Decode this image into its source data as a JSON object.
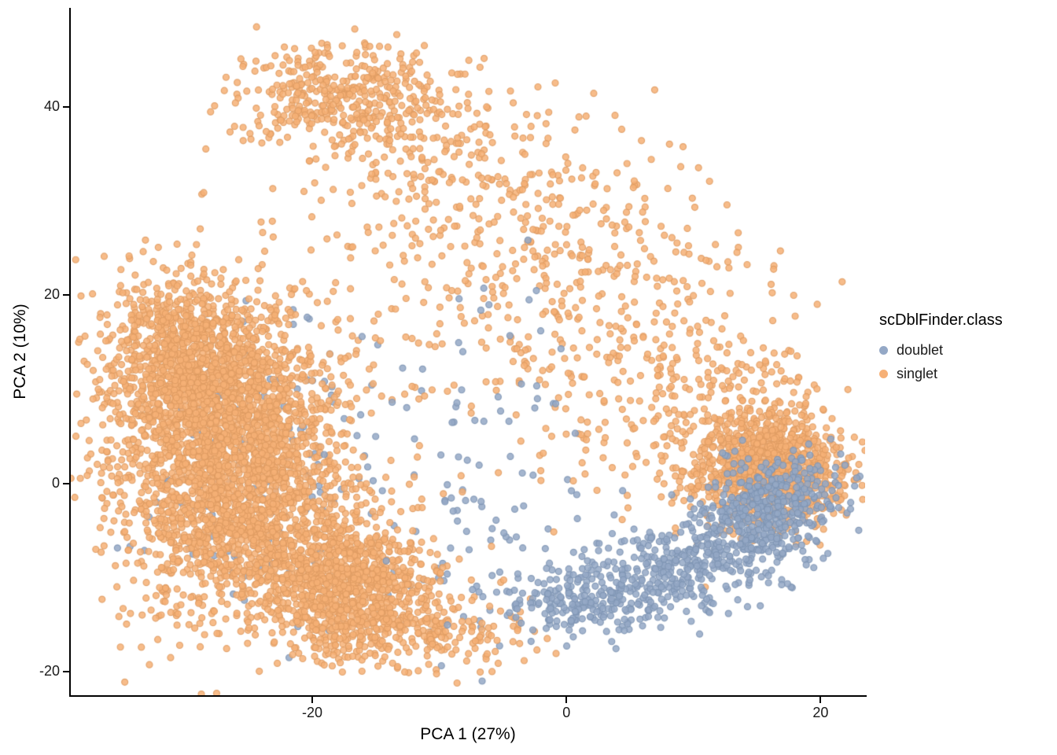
{
  "chart_data": {
    "type": "scatter",
    "title": "",
    "xlabel": "PCA 1 (27%)",
    "ylabel": "PCA 2 (10%)",
    "xlim": [
      -39,
      23.5
    ],
    "ylim": [
      -22.5,
      50.5
    ],
    "grid": false,
    "x_ticks": [
      {
        "value": -20,
        "label": "-20"
      },
      {
        "value": 0,
        "label": "0"
      },
      {
        "value": 20,
        "label": "20"
      }
    ],
    "y_ticks": [
      {
        "value": -20,
        "label": "-20"
      },
      {
        "value": 0,
        "label": "0"
      },
      {
        "value": 20,
        "label": "20"
      },
      {
        "value": 40,
        "label": "40"
      }
    ],
    "legend": {
      "title": "scDblFinder.class",
      "position": "right",
      "entries": [
        {
          "label": "doublet",
          "color": "#94A8C6"
        },
        {
          "label": "singlet",
          "color": "#F6B076"
        }
      ]
    },
    "point_style": {
      "radius": 4,
      "stroke_width": 1.2,
      "alpha": 0.85,
      "colors": {
        "doublet": {
          "fill": "#94A8C6",
          "stroke": "#7E94B3"
        },
        "singlet": {
          "fill": "#F6B076",
          "stroke": "#DE9B62"
        }
      }
    },
    "seed": 42,
    "series": [
      {
        "name": "doublet",
        "n_points": 1255
      },
      {
        "name": "singlet",
        "n_points": 7020
      }
    ],
    "clusters": [
      {
        "cls": "doublet",
        "cx": -24,
        "cy": 2,
        "sx": 5,
        "sy": 8,
        "n": 150
      },
      {
        "cls": "doublet",
        "cx": -6,
        "cy": -4,
        "sx": 3.5,
        "sy": 7,
        "n": 70
      },
      {
        "cls": "singlet",
        "cx": -27,
        "cy": 8,
        "sx": 4.5,
        "sy": 6,
        "n": 1500
      },
      {
        "cls": "singlet",
        "cx": -25,
        "cy": -4,
        "sx": 4.5,
        "sy": 5,
        "n": 1200
      },
      {
        "cls": "singlet",
        "cx": -17,
        "cy": -11,
        "sx": 3.5,
        "sy": 3.5,
        "n": 900
      },
      {
        "cls": "singlet",
        "cx": -30,
        "cy": 14,
        "sx": 3,
        "sy": 4,
        "n": 500
      },
      {
        "cls": "singlet",
        "cx": -31,
        "cy": 3,
        "sx": 4,
        "sy": 10,
        "n": 300
      },
      {
        "cls": "singlet",
        "cx": -14,
        "cy": -16,
        "sx": 4,
        "sy": 2.2,
        "n": 140
      },
      {
        "cls": "singlet",
        "cx": -8,
        "cy": -16,
        "sx": 3,
        "sy": 2,
        "n": 70
      },
      {
        "cls": "singlet",
        "cx": -17,
        "cy": 41,
        "sx": 4.5,
        "sy": 3,
        "n": 430
      },
      {
        "cls": "singlet",
        "cx": -8,
        "cy": 32,
        "sx": 7,
        "sy": 5,
        "n": 260
      },
      {
        "cls": "singlet",
        "cx": -2,
        "cy": 18,
        "sx": 9,
        "sy": 8,
        "n": 240
      },
      {
        "cls": "singlet",
        "cx": 5,
        "cy": 22,
        "sx": 5,
        "sy": 5,
        "n": 120
      },
      {
        "cls": "singlet",
        "cx": 7,
        "cy": 8,
        "sx": 6,
        "sy": 6,
        "n": 160
      },
      {
        "cls": "singlet",
        "cx": 12,
        "cy": 10,
        "sx": 4,
        "sy": 3,
        "n": 100
      },
      {
        "cls": "singlet",
        "cx": 16,
        "cy": 1.5,
        "sx": 3,
        "sy": 3,
        "n": 1100
      },
      {
        "cls": "doublet",
        "cx": -6,
        "cy": 10,
        "sx": 5,
        "sy": 7,
        "n": 35
      },
      {
        "cls": "doublet",
        "cx": 2,
        "cy": -12.5,
        "sx": 3.5,
        "sy": 1.8,
        "n": 260
      },
      {
        "cls": "doublet",
        "cx": 9,
        "cy": -9,
        "sx": 3.5,
        "sy": 2,
        "n": 260
      },
      {
        "cls": "doublet",
        "cx": 14,
        "cy": -5,
        "sx": 2.5,
        "sy": 2,
        "n": 220
      },
      {
        "cls": "doublet",
        "cx": 17,
        "cy": -1.5,
        "sx": 2.5,
        "sy": 2.2,
        "n": 260
      }
    ]
  }
}
